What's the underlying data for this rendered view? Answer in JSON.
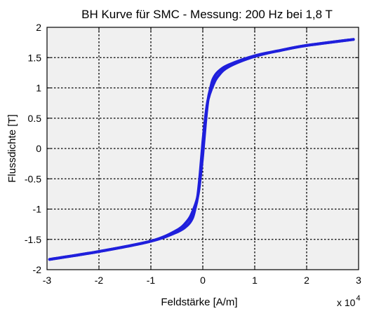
{
  "chart_data": {
    "type": "line",
    "title": "BH Kurve für SMC - Messung: 200 Hz bei 1,8 T",
    "xlabel": "Feldstärke [A/m]",
    "ylabel": "Flussdichte [T]",
    "x_multiplier_label": "x 10",
    "x_multiplier_exponent": "4",
    "xlim": [
      -3,
      3
    ],
    "ylim": [
      -2,
      2
    ],
    "x_ticks": [
      -3,
      -2,
      -1,
      0,
      1,
      2,
      3
    ],
    "x_tick_labels": [
      "-3",
      "-2",
      "-1",
      "0",
      "1",
      "2",
      "3"
    ],
    "y_ticks": [
      -2,
      -1.5,
      -1,
      -0.5,
      0,
      0.5,
      1,
      1.5,
      2
    ],
    "y_tick_labels": [
      "-2",
      "-1.5",
      "-1",
      "-0.5",
      "0",
      "0.5",
      "1",
      "1.5",
      "2"
    ],
    "grid": true,
    "grid_style": "dotted",
    "background_color": "#f0f0f0",
    "line_color": "#1f1fdc",
    "series": [
      {
        "branch": "descending",
        "x": [
          2.9,
          2.0,
          1.5,
          1.0,
          0.5,
          0.3,
          0.2,
          0.1,
          0.05,
          0.0,
          -0.05,
          -0.1,
          -0.15,
          -0.2,
          -0.3,
          -0.5,
          -1.0,
          -2.0,
          -2.95
        ],
        "y": [
          1.8,
          1.7,
          1.62,
          1.52,
          1.35,
          1.2,
          1.05,
          0.8,
          0.5,
          0.1,
          -0.4,
          -0.8,
          -1.0,
          -1.15,
          -1.27,
          -1.38,
          -1.53,
          -1.7,
          -1.83
        ]
      },
      {
        "branch": "ascending",
        "x": [
          -2.95,
          -2.0,
          -1.0,
          -0.5,
          -0.3,
          -0.2,
          -0.1,
          -0.05,
          0.0,
          0.05,
          0.1,
          0.15,
          0.2,
          0.3,
          0.5,
          1.0,
          1.5,
          2.0,
          2.9
        ],
        "y": [
          -1.83,
          -1.7,
          -1.53,
          -1.35,
          -1.2,
          -1.05,
          -0.8,
          -0.5,
          -0.1,
          0.4,
          0.8,
          1.0,
          1.15,
          1.27,
          1.38,
          1.53,
          1.62,
          1.7,
          1.8
        ]
      }
    ]
  }
}
